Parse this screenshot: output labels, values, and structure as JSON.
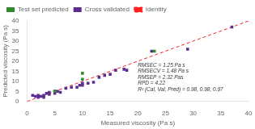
{
  "chart_data": {
    "type": "scatter",
    "xlabel": "Measured viscosity (Pa s)",
    "ylabel": "Predicted viscosity (Pa s)",
    "annotation": "RMSEC = 1.25 Pa s\nRMSECV = 1.48 Pa s\nRMSEP = 2.32 Pas\nRPD = 4.22\nR² (Cal, Val, Pred) = 0.98, 0.98, 0.97",
    "series": [
      {
        "name": "Cross validated",
        "color": "#5b2d8e",
        "marker": "square",
        "x": [
          1,
          1.5,
          2,
          2,
          2.5,
          3,
          3,
          3.5,
          4,
          4,
          5,
          5,
          5.5,
          6,
          7,
          8,
          9,
          9.5,
          10,
          10,
          11,
          12,
          13,
          14,
          15,
          16,
          17.5,
          18,
          22.5,
          29,
          37
        ],
        "values": [
          3,
          2.5,
          2,
          3,
          2.5,
          2,
          3,
          4,
          3.5,
          4.5,
          4,
          5,
          5,
          4.5,
          6.5,
          7,
          7,
          8,
          8,
          9,
          9,
          9.5,
          12,
          13,
          13.5,
          15.5,
          16,
          15.5,
          25,
          26,
          37
        ]
      },
      {
        "name": "Test set predicted",
        "color": "#2e8b2e",
        "marker": "square",
        "x": [
          5,
          10,
          10,
          23
        ],
        "values": [
          5,
          11,
          14,
          25
        ]
      },
      {
        "name": "Identity",
        "color": "#ff2020",
        "type": "line",
        "line_style": "dashed",
        "x": [
          0,
          40
        ],
        "values": [
          0,
          40
        ]
      }
    ],
    "xlim": [
      0,
      40
    ],
    "ylim": [
      0,
      40
    ],
    "xticks": [
      0,
      5,
      10,
      15,
      20,
      25,
      30,
      35,
      40
    ],
    "yticks": [
      0,
      5,
      10,
      15,
      20,
      25,
      30,
      35,
      40
    ],
    "grid": false,
    "legend": "upper left"
  }
}
